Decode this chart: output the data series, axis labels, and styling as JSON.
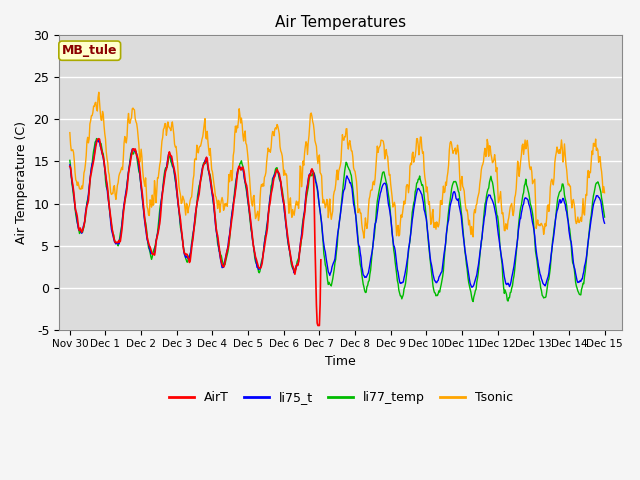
{
  "title": "Air Temperatures",
  "ylabel": "Air Temperature (C)",
  "xlabel": "Time",
  "ylim": [
    -5,
    30
  ],
  "xlim_days": [
    -0.3,
    15.5
  ],
  "plot_bg_color": "#dcdcdc",
  "fig_bg_color": "#f5f5f5",
  "grid_color": "white",
  "annotation_text": "MB_tule",
  "annotation_fg": "#8b0000",
  "annotation_bg": "#ffffcc",
  "annotation_edge": "#aaaa00",
  "colors": {
    "AirT": "#ff0000",
    "li75_t": "#0000ff",
    "li77_temp": "#00bb00",
    "Tsonic": "#ffa500"
  },
  "tick_labels": [
    "Nov 30",
    "Dec 1",
    "Dec 2",
    "Dec 3",
    "Dec 4",
    "Dec 5",
    "Dec 6",
    "Dec 7",
    "Dec 8",
    "Dec 9",
    "Dec 10",
    "Dec 11",
    "Dec 12",
    "Dec 13",
    "Dec 14",
    "Dec 15"
  ],
  "tick_positions": [
    0,
    1,
    2,
    3,
    4,
    5,
    6,
    7,
    8,
    9,
    10,
    11,
    12,
    13,
    14,
    15
  ],
  "yticks": [
    -5,
    0,
    5,
    10,
    15,
    20,
    25,
    30
  ]
}
